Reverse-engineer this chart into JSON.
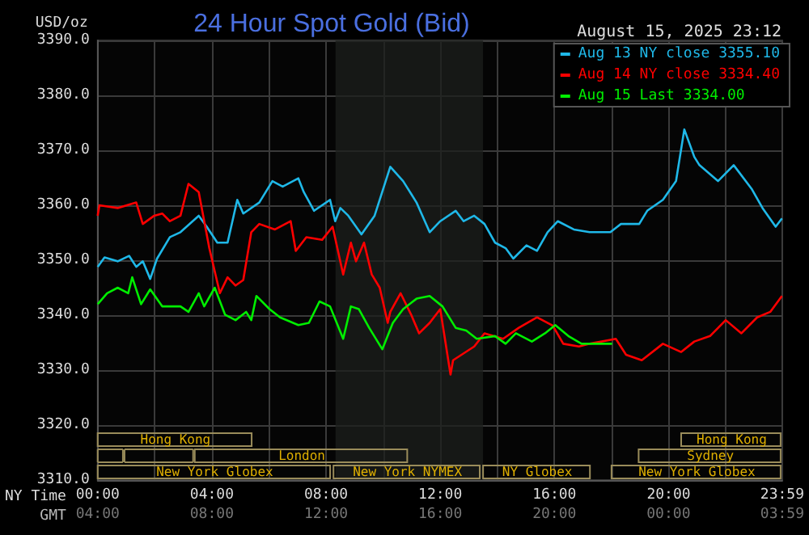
{
  "chart_data": {
    "type": "line",
    "title": "24 Hour Spot Gold (Bid)",
    "subtitle": "August 15, 2025 23:12",
    "ylabel": "USD/oz",
    "xlabel": "NY Time",
    "x2label": "GMT",
    "xlim": [
      0,
      23.98
    ],
    "xticks": [
      {
        "value": 0,
        "label": "00:00"
      },
      {
        "value": 2,
        "label": null
      },
      {
        "value": 4,
        "label": "04:00"
      },
      {
        "value": 6,
        "label": null
      },
      {
        "value": 8,
        "label": "08:00"
      },
      {
        "value": 10,
        "label": null
      },
      {
        "value": 12,
        "label": "12:00"
      },
      {
        "value": 14,
        "label": null
      },
      {
        "value": 16,
        "label": "16:00"
      },
      {
        "value": 18,
        "label": null
      },
      {
        "value": 20,
        "label": "20:00"
      },
      {
        "value": 22,
        "label": null
      },
      {
        "value": 23.98,
        "label": "23:59"
      }
    ],
    "x2lim": [
      "2025-08-15T04:00",
      "2025-08-16T03:59"
    ],
    "x2ticks": [
      {
        "value": "2025-08-15T04:00",
        "label": "04:00"
      },
      {
        "value": "2025-08-15T08:00",
        "label": "08:00"
      },
      {
        "value": "2025-08-15T12:00",
        "label": "12:00"
      },
      {
        "value": "2025-08-15T16:00",
        "label": "16:00"
      },
      {
        "value": "2025-08-15T20:00",
        "label": "20:00"
      },
      {
        "value": "2025-08-16T00:00",
        "label": "00:00"
      },
      {
        "value": "2025-08-16T03:59",
        "label": "03:59"
      }
    ],
    "ylim": [
      3310,
      3390
    ],
    "yticks": [
      {
        "value": 3310,
        "label": "3310.0"
      },
      {
        "value": 3320,
        "label": "3320.0"
      },
      {
        "value": 3330,
        "label": "3330.0"
      },
      {
        "value": 3340,
        "label": "3340.0"
      },
      {
        "value": 3350,
        "label": "3350.0"
      },
      {
        "value": 3360,
        "label": "3360.0"
      },
      {
        "value": 3370,
        "label": "3370.0"
      },
      {
        "value": 3380,
        "label": "3380.0"
      },
      {
        "value": 3390,
        "label": "3390.0"
      }
    ],
    "grid": true,
    "legend": "top right",
    "bands": [
      {
        "axis": "x",
        "from": 8.33,
        "to": 13.5,
        "color": "#1c1f1c"
      }
    ],
    "annotations": [
      "New York Globex",
      "New York NYMEX",
      "NY Globex",
      "New York Globex",
      "London",
      "Sydney",
      "Hong Kong",
      "Hong Kong"
    ],
    "series": [
      {
        "name": "Aug 13 NY close 3355.10",
        "color": "#1fb8e8",
        "x": [
          0,
          0.24,
          0.7,
          1.1,
          1.35,
          1.58,
          1.84,
          2.08,
          2.53,
          2.9,
          3.54,
          3.82,
          4.19,
          4.55,
          4.89,
          5.1,
          5.66,
          6.12,
          6.48,
          7.03,
          7.22,
          7.58,
          8.14,
          8.32,
          8.5,
          8.78,
          9.24,
          9.7,
          10.25,
          10.7,
          11.17,
          11.63,
          12.0,
          12.54,
          12.82,
          13.19,
          13.55,
          13.92,
          14.29,
          14.56,
          15.02,
          15.39,
          15.76,
          16.12,
          16.68,
          17.23,
          17.96,
          18.33,
          18.97,
          19.25,
          19.8,
          20.26,
          20.55,
          20.9,
          21.08,
          21.73,
          22.28,
          22.92,
          23.29,
          23.75,
          23.97
        ],
        "values": [
          3348.8,
          3350.5,
          3349.8,
          3350.8,
          3348.8,
          3349.8,
          3346.6,
          3350.3,
          3354.2,
          3355.1,
          3358.1,
          3356.1,
          3353.2,
          3353.2,
          3361.0,
          3358.5,
          3360.5,
          3364.4,
          3363.4,
          3364.9,
          3362.4,
          3359.0,
          3361.0,
          3357.1,
          3359.5,
          3358.1,
          3354.7,
          3358.1,
          3367.0,
          3364.4,
          3360.5,
          3355.1,
          3357.1,
          3359.0,
          3357.1,
          3358.1,
          3356.6,
          3353.2,
          3352.2,
          3350.3,
          3352.7,
          3351.7,
          3355.1,
          3357.1,
          3355.6,
          3355.1,
          3355.1,
          3356.6,
          3356.6,
          3359.0,
          3361.0,
          3364.4,
          3373.8,
          3368.8,
          3367.3,
          3364.4,
          3367.3,
          3362.9,
          3359.5,
          3356.1,
          3357.6
        ]
      },
      {
        "name": "Aug 14 NY close 3334.40",
        "color": "#ff0000",
        "x": [
          0,
          0.06,
          0.7,
          1.35,
          1.58,
          1.98,
          2.26,
          2.53,
          2.9,
          3.18,
          3.54,
          3.91,
          4.28,
          4.55,
          4.83,
          5.1,
          5.38,
          5.66,
          6.21,
          6.76,
          6.94,
          7.31,
          7.86,
          8.23,
          8.6,
          8.87,
          9.05,
          9.33,
          9.6,
          9.88,
          10.16,
          10.25,
          10.61,
          10.98,
          11.26,
          11.63,
          12.0,
          12.36,
          12.45,
          13.19,
          13.55,
          14.2,
          14.75,
          15.39,
          15.94,
          16.31,
          16.86,
          17.23,
          18.15,
          18.51,
          19.06,
          19.8,
          20.44,
          20.9,
          21.45,
          22.0,
          22.55,
          23.1,
          23.56,
          23.97
        ],
        "values": [
          3358.1,
          3360.0,
          3359.5,
          3360.5,
          3356.6,
          3358.1,
          3358.5,
          3357.1,
          3358.1,
          3363.9,
          3362.4,
          3352.2,
          3344.0,
          3346.9,
          3345.4,
          3346.4,
          3355.1,
          3356.6,
          3355.6,
          3357.1,
          3351.7,
          3354.2,
          3353.7,
          3356.1,
          3347.4,
          3353.2,
          3349.8,
          3353.2,
          3347.4,
          3345.0,
          3338.6,
          3340.6,
          3344.0,
          3340.1,
          3336.7,
          3338.6,
          3341.1,
          3329.2,
          3331.8,
          3334.3,
          3336.7,
          3335.7,
          3337.7,
          3339.6,
          3338.1,
          3334.8,
          3334.3,
          3334.8,
          3335.7,
          3332.8,
          3331.8,
          3334.8,
          3333.3,
          3335.2,
          3336.2,
          3339.1,
          3336.7,
          3339.6,
          3340.6,
          3343.5
        ]
      },
      {
        "name": "Aug 15 Last 3334.00",
        "color": "#00ee00",
        "x": [
          0,
          0.33,
          0.7,
          1.07,
          1.21,
          1.52,
          1.84,
          2.26,
          2.9,
          3.18,
          3.54,
          3.73,
          4.1,
          4.46,
          4.83,
          5.2,
          5.38,
          5.56,
          6.02,
          6.39,
          7.03,
          7.4,
          7.77,
          8.14,
          8.6,
          8.87,
          9.15,
          9.51,
          9.97,
          10.34,
          10.7,
          11.17,
          11.63,
          12.08,
          12.54,
          12.91,
          13.28,
          13.92,
          14.29,
          14.65,
          15.21,
          15.67,
          16.03,
          16.49,
          16.95,
          18.02
        ],
        "values": [
          3342.0,
          3344.0,
          3345.0,
          3344.0,
          3346.9,
          3342.0,
          3344.7,
          3341.6,
          3341.6,
          3340.6,
          3344.0,
          3341.6,
          3345.0,
          3340.1,
          3339.1,
          3340.6,
          3339.1,
          3343.5,
          3341.1,
          3339.6,
          3338.2,
          3338.6,
          3342.5,
          3341.6,
          3335.7,
          3341.6,
          3341.1,
          3337.7,
          3333.8,
          3338.6,
          3341.1,
          3343.0,
          3343.5,
          3341.6,
          3337.7,
          3337.2,
          3335.7,
          3336.2,
          3334.8,
          3336.7,
          3335.2,
          3336.7,
          3338.2,
          3336.2,
          3334.8,
          3334.8
        ]
      }
    ]
  }
}
